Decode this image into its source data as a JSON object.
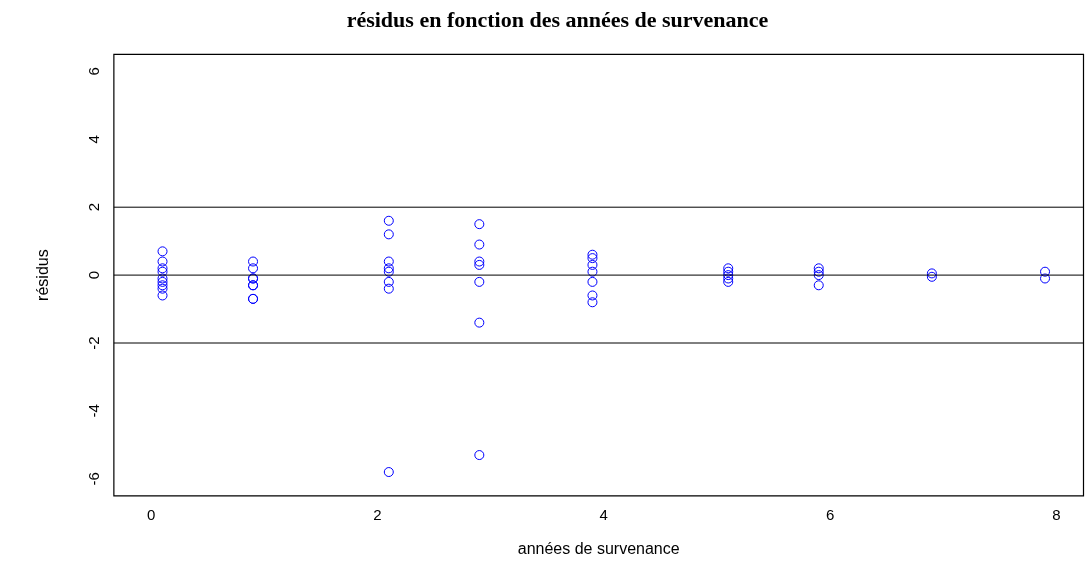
{
  "chart_data": {
    "type": "scatter",
    "title": "résidus en fonction des années de survenance",
    "xlabel": "années de survenance",
    "ylabel": "résidus",
    "series": [
      {
        "color": "#0000ff",
        "x": [
          0.1,
          0.1,
          0.1,
          0.1,
          0.1,
          0.1,
          0.1,
          0.1,
          0.1,
          0.9,
          0.9,
          0.9,
          0.9,
          0.9,
          0.9,
          0.9,
          0.9,
          2.1,
          2.1,
          2.1,
          2.1,
          2.1,
          2.1,
          2.1,
          2.1,
          2.9,
          2.9,
          2.9,
          2.9,
          2.9,
          2.9,
          2.9,
          3.9,
          3.9,
          3.9,
          3.9,
          3.9,
          3.9,
          3.9,
          5.1,
          5.1,
          5.1,
          5.1,
          5.1,
          5.9,
          5.9,
          5.9,
          5.9,
          6.9,
          6.9,
          7.9,
          7.9
        ],
        "values": [
          0.7,
          0.4,
          0.2,
          0.1,
          -0.1,
          -0.2,
          -0.3,
          -0.4,
          -0.6,
          0.4,
          0.2,
          -0.1,
          -0.1,
          -0.3,
          -0.3,
          -0.7,
          -0.7,
          1.6,
          1.2,
          0.4,
          0.2,
          0.1,
          -0.2,
          -0.4,
          -5.8,
          1.5,
          0.9,
          0.4,
          0.3,
          -0.2,
          -1.4,
          -5.3,
          0.6,
          0.5,
          0.3,
          0.1,
          -0.2,
          -0.6,
          -0.8,
          0.2,
          0.1,
          0,
          -0.1,
          -0.2,
          0.2,
          0.1,
          0,
          -0.3,
          0.05,
          -0.05,
          0.1,
          -0.1
        ]
      }
    ],
    "xlim": [
      -0.33,
      8.24
    ],
    "ylim": [
      -6.5,
      6.5
    ],
    "xticks": [
      0,
      2,
      4,
      6,
      8
    ],
    "yticks": [
      -6,
      -4,
      -2,
      0,
      2,
      4,
      6
    ],
    "ref_lines": [
      {
        "axis": "y",
        "value": 2,
        "color": "#000000"
      },
      {
        "axis": "y",
        "value": 0,
        "color": "#000000"
      },
      {
        "axis": "y",
        "value": -2,
        "color": "#000000"
      }
    ],
    "grid": false,
    "legend": false,
    "marker": "circle"
  }
}
